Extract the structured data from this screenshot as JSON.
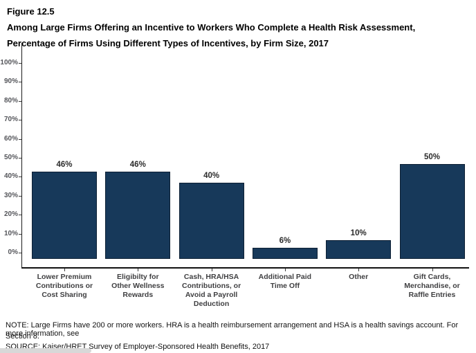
{
  "figure": {
    "label": "Figure 12.5",
    "title_line1": "Among Large Firms Offering an Incentive to Workers Who Complete a Health Risk Assessment,",
    "title_line2": "Percentage of Firms Using Different Types of Incentives, by Firm Size, 2017"
  },
  "chart_data": {
    "type": "bar",
    "title": "Among Large Firms Offering an Incentive to Workers Who Complete a Health Risk Assessment, Percentage of Firms Using Different Types of Incentives, by Firm Size, 2017",
    "categories": [
      "Lower Premium\nContributions or\nCost Sharing",
      "Eligibilty for\nOther Wellness\nRewards",
      "Cash, HRA/HSA\nContributions, or\nAvoid a Payroll\nDeduction",
      "Additional Paid\nTime Off",
      "Other",
      "Gift Cards,\nMerchandise, or\nRaffle Entries"
    ],
    "values": [
      46,
      46,
      40,
      6,
      10,
      50
    ],
    "value_labels": [
      "46%",
      "46%",
      "40%",
      "6%",
      "10%",
      "50%"
    ],
    "yticks": [
      0,
      10,
      20,
      30,
      40,
      50,
      60,
      70,
      80,
      90,
      100
    ],
    "ytick_labels": [
      "0%",
      "10%",
      "20%",
      "30%",
      "40%",
      "50%",
      "60%",
      "70%",
      "80%",
      "90%",
      "100%"
    ],
    "ylim": [
      0,
      100
    ],
    "xlabel": "",
    "ylabel": "",
    "grid": false,
    "legend": "none",
    "bar_color": "#17395A",
    "bar_border_color": "#0D1F33"
  },
  "notes": {
    "note_line1": "NOTE: Large Firms have 200 or more workers. HRA is a health reimbursement arrangement and HSA is a health savings account. For more information, see",
    "note_line2": "Section 8.",
    "source": "SOURCE: Kaiser/HRET Survey of Employer-Sponsored Health Benefits, 2017"
  }
}
